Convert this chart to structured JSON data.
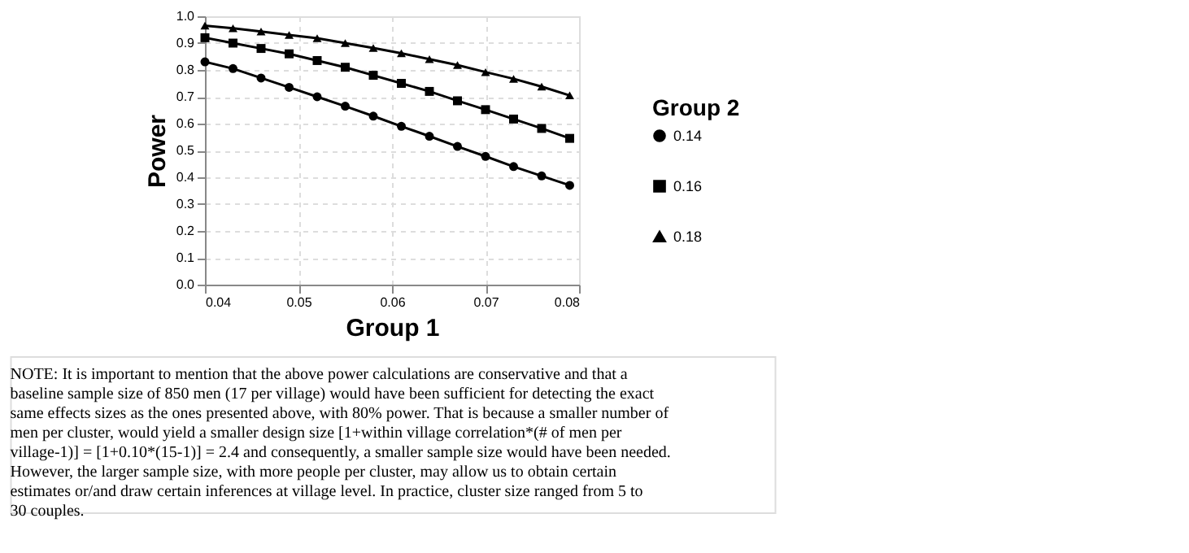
{
  "chart_data": {
    "type": "line",
    "xlabel": "Group 1",
    "ylabel": "Power",
    "legend_title": "Group 2",
    "legend": "right",
    "grid": true,
    "line_style": "solid",
    "x": [
      0.04,
      0.043,
      0.046,
      0.049,
      0.052,
      0.055,
      0.058,
      0.061,
      0.064,
      0.067,
      0.07,
      0.073,
      0.076,
      0.079
    ],
    "series": [
      {
        "name": "0.14",
        "color": "#000000",
        "marker": "circle",
        "values": [
          0.83,
          0.805,
          0.77,
          0.735,
          0.7,
          0.665,
          0.628,
          0.59,
          0.553,
          0.515,
          0.478,
          0.44,
          0.405,
          0.37
        ]
      },
      {
        "name": "0.16",
        "color": "#000000",
        "marker": "square",
        "values": [
          0.92,
          0.9,
          0.88,
          0.86,
          0.835,
          0.81,
          0.78,
          0.75,
          0.72,
          0.685,
          0.652,
          0.617,
          0.582,
          0.545
        ]
      },
      {
        "name": "0.18",
        "color": "#000000",
        "marker": "triangle",
        "values": [
          0.965,
          0.955,
          0.943,
          0.93,
          0.918,
          0.9,
          0.882,
          0.862,
          0.84,
          0.818,
          0.792,
          0.767,
          0.738,
          0.705
        ]
      }
    ],
    "xlim": [
      0.04,
      0.08
    ],
    "xticks": [
      0.04,
      0.05,
      0.06,
      0.07,
      0.08
    ],
    "ylim": [
      0,
      1
    ],
    "yticks": [
      {
        "value": 0,
        "label": "0.0"
      },
      0.1,
      0.2,
      0.3,
      0.4,
      0.5,
      0.6,
      0.7,
      0.8,
      0.9,
      {
        "value": 1,
        "label": "1.0"
      }
    ],
    "annotations": [
      "NOTE: It is important to mention that the above power calculations are conservative and that a baseline sample size of 850 men (17 per village) would have been sufficient for detecting the exact same effects sizes as the ones presented above, with 80% power. That is because a smaller number of men per cluster, would yield a smaller design size [1+within village correlation*(# of men per village-1)] = [1+0.10*(15-1)] = 2.4 and consequently, a smaller sample size would have been needed. However, the larger sample size, with more people per cluster, may allow us to obtain certain estimates or/and draw certain inferences at village level. In practice, cluster size ranged from 5 to 30 couples."
    ]
  }
}
